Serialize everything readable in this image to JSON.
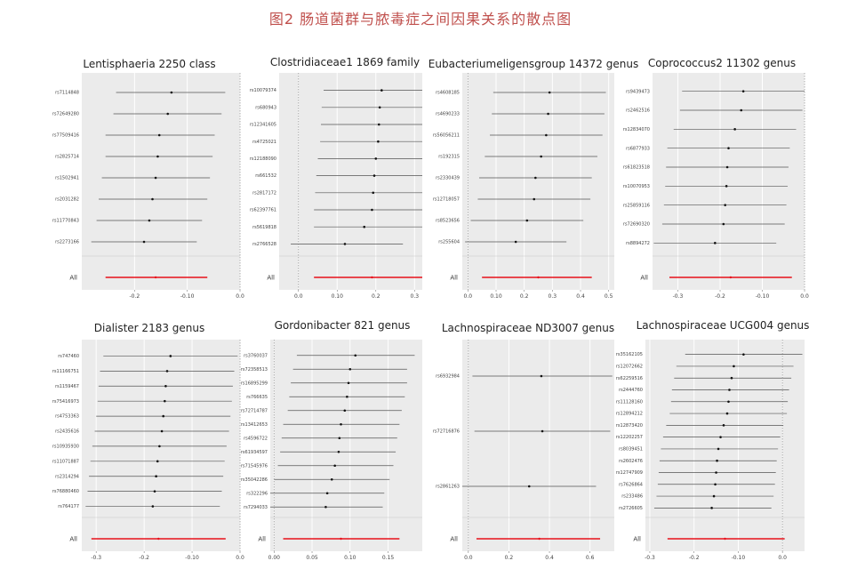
{
  "figure_title": "图2 肠道菌群与脓毒症之间因果关系的散点图",
  "colors": {
    "background": "#ebebeb",
    "segment": "#555555",
    "point": "#111111",
    "overall": "#e8111b",
    "zero_line": "#9a9a9a",
    "grid": "#ffffff"
  },
  "chart_data": [
    {
      "type": "forest",
      "title": "Lentisphaeria 2250 class",
      "xlim": [
        -0.3,
        0.0
      ],
      "xticks": [
        -0.2,
        -0.1,
        0.0
      ],
      "overall_label": "All",
      "overall": {
        "est": -0.16,
        "lo": -0.255,
        "hi": -0.062
      },
      "rows": [
        {
          "snp": "rs7114848",
          "est": -0.13,
          "lo": -0.235,
          "hi": -0.028
        },
        {
          "snp": "rs72649280",
          "est": -0.137,
          "lo": -0.24,
          "hi": -0.035
        },
        {
          "snp": "rs77509416",
          "est": -0.153,
          "lo": -0.255,
          "hi": -0.048
        },
        {
          "snp": "rs2825714",
          "est": -0.156,
          "lo": -0.255,
          "hi": -0.052
        },
        {
          "snp": "rs1502941",
          "est": -0.16,
          "lo": -0.262,
          "hi": -0.057
        },
        {
          "snp": "rs2031282",
          "est": -0.166,
          "lo": -0.268,
          "hi": -0.062
        },
        {
          "snp": "rs11770843",
          "est": -0.172,
          "lo": -0.272,
          "hi": -0.072
        },
        {
          "snp": "rs2273166",
          "est": -0.182,
          "lo": -0.282,
          "hi": -0.082
        }
      ]
    },
    {
      "type": "forest",
      "title": "Clostridiaceae1 1869 family",
      "xlim": [
        -0.05,
        0.32
      ],
      "xticks": [
        0.0,
        0.1,
        0.2,
        0.3
      ],
      "overall_label": "All",
      "overall": {
        "est": 0.19,
        "lo": 0.04,
        "hi": 0.34
      },
      "rows": [
        {
          "snp": "rs10079374",
          "est": 0.215,
          "lo": 0.065,
          "hi": 0.365
        },
        {
          "snp": "rs680943",
          "est": 0.21,
          "lo": 0.06,
          "hi": 0.36
        },
        {
          "snp": "rs12341605",
          "est": 0.208,
          "lo": 0.058,
          "hi": 0.358
        },
        {
          "snp": "rs4725021",
          "est": 0.206,
          "lo": 0.056,
          "hi": 0.356
        },
        {
          "snp": "rs12188090",
          "est": 0.2,
          "lo": 0.05,
          "hi": 0.35
        },
        {
          "snp": "rs661532",
          "est": 0.196,
          "lo": 0.046,
          "hi": 0.346
        },
        {
          "snp": "rs2817172",
          "est": 0.193,
          "lo": 0.043,
          "hi": 0.343
        },
        {
          "snp": "rs62397761",
          "est": 0.19,
          "lo": 0.04,
          "hi": 0.34
        },
        {
          "snp": "rs5619818",
          "est": 0.17,
          "lo": 0.04,
          "hi": 0.32
        },
        {
          "snp": "rs2766528",
          "est": 0.12,
          "lo": -0.02,
          "hi": 0.27
        }
      ]
    },
    {
      "type": "forest",
      "title": "Eubacteriumeligensgroup 14372 genus",
      "xlim": [
        -0.02,
        0.52
      ],
      "xticks": [
        0.0,
        0.1,
        0.2,
        0.3,
        0.4,
        0.5
      ],
      "overall_label": "All",
      "overall": {
        "est": 0.25,
        "lo": 0.05,
        "hi": 0.44
      },
      "rows": [
        {
          "snp": "rs4608185",
          "est": 0.29,
          "lo": 0.09,
          "hi": 0.49
        },
        {
          "snp": "rs4690233",
          "est": 0.285,
          "lo": 0.085,
          "hi": 0.485
        },
        {
          "snp": "rs56056211",
          "est": 0.278,
          "lo": 0.078,
          "hi": 0.478
        },
        {
          "snp": "rs192315",
          "est": 0.26,
          "lo": 0.06,
          "hi": 0.46
        },
        {
          "snp": "rs2330439",
          "est": 0.24,
          "lo": 0.04,
          "hi": 0.44
        },
        {
          "snp": "rs12718057",
          "est": 0.235,
          "lo": 0.035,
          "hi": 0.435
        },
        {
          "snp": "rs8523656",
          "est": 0.21,
          "lo": 0.01,
          "hi": 0.41
        },
        {
          "snp": "rs255604",
          "est": 0.17,
          "lo": -0.01,
          "hi": 0.35
        }
      ]
    },
    {
      "type": "forest",
      "title": "Coprococcus2 11302 genus",
      "xlim": [
        -0.36,
        0.0
      ],
      "xticks": [
        -0.3,
        -0.2,
        -0.1,
        0.0
      ],
      "overall_label": "All",
      "overall": {
        "est": -0.175,
        "lo": -0.32,
        "hi": -0.03
      },
      "rows": [
        {
          "snp": "rs9439473",
          "est": -0.145,
          "lo": -0.29,
          "hi": 0.005
        },
        {
          "snp": "rs2462516",
          "est": -0.15,
          "lo": -0.295,
          "hi": -0.005
        },
        {
          "snp": "rs12834070",
          "est": -0.165,
          "lo": -0.31,
          "hi": -0.02
        },
        {
          "snp": "rs6877933",
          "est": -0.18,
          "lo": -0.325,
          "hi": -0.035
        },
        {
          "snp": "rs61823518",
          "est": -0.183,
          "lo": -0.328,
          "hi": -0.038
        },
        {
          "snp": "rs10070953",
          "est": -0.185,
          "lo": -0.33,
          "hi": -0.04
        },
        {
          "snp": "rs25859116",
          "est": -0.188,
          "lo": -0.333,
          "hi": -0.043
        },
        {
          "snp": "rs72690320",
          "est": -0.192,
          "lo": -0.337,
          "hi": -0.047
        },
        {
          "snp": "rs8894272",
          "est": -0.212,
          "lo": -0.357,
          "hi": -0.067
        }
      ]
    },
    {
      "type": "forest",
      "title": "Dialister 2183 genus",
      "xlim": [
        -0.33,
        0.0
      ],
      "xticks": [
        -0.3,
        -0.2,
        -0.1,
        0.0
      ],
      "overall_label": "All",
      "overall": {
        "est": -0.17,
        "lo": -0.31,
        "hi": -0.03
      },
      "rows": [
        {
          "snp": "rs747460",
          "est": -0.145,
          "lo": -0.285,
          "hi": -0.005
        },
        {
          "snp": "rs11166751",
          "est": -0.152,
          "lo": -0.292,
          "hi": -0.012
        },
        {
          "snp": "rs1159467",
          "est": -0.155,
          "lo": -0.295,
          "hi": -0.015
        },
        {
          "snp": "rs75416973",
          "est": -0.157,
          "lo": -0.297,
          "hi": -0.017
        },
        {
          "snp": "rs4753363",
          "est": -0.16,
          "lo": -0.3,
          "hi": -0.02
        },
        {
          "snp": "rs2435616",
          "est": -0.163,
          "lo": -0.303,
          "hi": -0.023
        },
        {
          "snp": "rs10935930",
          "est": -0.168,
          "lo": -0.308,
          "hi": -0.028
        },
        {
          "snp": "rs11071887",
          "est": -0.172,
          "lo": -0.312,
          "hi": -0.032
        },
        {
          "snp": "rs2314294",
          "est": -0.175,
          "lo": -0.315,
          "hi": -0.035
        },
        {
          "snp": "rs76880460",
          "est": -0.178,
          "lo": -0.318,
          "hi": -0.038
        },
        {
          "snp": "rs764177",
          "est": -0.182,
          "lo": -0.322,
          "hi": -0.042
        }
      ]
    },
    {
      "type": "forest",
      "title": "Gordonibacter 821 genus",
      "xlim": [
        -0.005,
        0.195
      ],
      "xticks": [
        0.0,
        0.05,
        0.1,
        0.15
      ],
      "overall_label": "All",
      "overall": {
        "est": 0.088,
        "lo": 0.012,
        "hi": 0.165
      },
      "rows": [
        {
          "snp": "rs3760037",
          "est": 0.107,
          "lo": 0.03,
          "hi": 0.185
        },
        {
          "snp": "rs72358513",
          "est": 0.1,
          "lo": 0.025,
          "hi": 0.175
        },
        {
          "snp": "rs16895299",
          "est": 0.098,
          "lo": 0.022,
          "hi": 0.175
        },
        {
          "snp": "rs766635",
          "est": 0.096,
          "lo": 0.02,
          "hi": 0.172
        },
        {
          "snp": "rs72714787",
          "est": 0.093,
          "lo": 0.018,
          "hi": 0.168
        },
        {
          "snp": "rs13412653",
          "est": 0.088,
          "lo": 0.012,
          "hi": 0.165
        },
        {
          "snp": "rs4596722",
          "est": 0.086,
          "lo": 0.01,
          "hi": 0.162
        },
        {
          "snp": "rs61934597",
          "est": 0.085,
          "lo": 0.008,
          "hi": 0.16
        },
        {
          "snp": "rs71545976",
          "est": 0.08,
          "lo": 0.005,
          "hi": 0.157
        },
        {
          "snp": "rs35042286",
          "est": 0.076,
          "lo": 0.0,
          "hi": 0.152
        },
        {
          "snp": "rs322296",
          "est": 0.07,
          "lo": -0.005,
          "hi": 0.145
        },
        {
          "snp": "rs7294033",
          "est": 0.068,
          "lo": -0.007,
          "hi": 0.143
        }
      ]
    },
    {
      "type": "forest",
      "title": "Lachnospiraceae ND3007 genus",
      "xlim": [
        -0.03,
        0.72
      ],
      "xticks": [
        0.0,
        0.2,
        0.4,
        0.6
      ],
      "overall_label": "All",
      "overall": {
        "est": 0.35,
        "lo": 0.04,
        "hi": 0.65
      },
      "rows": [
        {
          "snp": "rs6932984",
          "est": 0.36,
          "lo": 0.02,
          "hi": 0.71
        },
        {
          "snp": "rs72716876",
          "est": 0.365,
          "lo": 0.03,
          "hi": 0.7
        },
        {
          "snp": "rs2861263",
          "est": 0.3,
          "lo": -0.03,
          "hi": 0.63
        }
      ]
    },
    {
      "type": "forest",
      "title": "Lachnospiraceae UCG004 genus",
      "xlim": [
        -0.31,
        0.05
      ],
      "xticks": [
        -0.3,
        -0.2,
        -0.1,
        0.0
      ],
      "overall_label": "All",
      "overall": {
        "est": -0.13,
        "lo": -0.26,
        "hi": 0.005
      },
      "rows": [
        {
          "snp": "rs35162105",
          "est": -0.088,
          "lo": -0.22,
          "hi": 0.045
        },
        {
          "snp": "rs12072662",
          "est": -0.11,
          "lo": -0.24,
          "hi": 0.025
        },
        {
          "snp": "rs62259516",
          "est": -0.115,
          "lo": -0.245,
          "hi": 0.02
        },
        {
          "snp": "rs2444760",
          "est": -0.12,
          "lo": -0.25,
          "hi": 0.015
        },
        {
          "snp": "rs11128160",
          "est": -0.122,
          "lo": -0.252,
          "hi": 0.012
        },
        {
          "snp": "rs12894212",
          "est": -0.125,
          "lo": -0.255,
          "hi": 0.01
        },
        {
          "snp": "rs12873420",
          "est": -0.133,
          "lo": -0.263,
          "hi": 0.002
        },
        {
          "snp": "rs12202257",
          "est": -0.14,
          "lo": -0.27,
          "hi": -0.005
        },
        {
          "snp": "rs8039451",
          "est": -0.145,
          "lo": -0.275,
          "hi": -0.01
        },
        {
          "snp": "rs2602476",
          "est": -0.148,
          "lo": -0.278,
          "hi": -0.013
        },
        {
          "snp": "rs12747909",
          "est": -0.15,
          "lo": -0.28,
          "hi": -0.015
        },
        {
          "snp": "rs7626864",
          "est": -0.152,
          "lo": -0.282,
          "hi": -0.017
        },
        {
          "snp": "rs233486",
          "est": -0.155,
          "lo": -0.285,
          "hi": -0.02
        },
        {
          "snp": "rs2726605",
          "est": -0.16,
          "lo": -0.29,
          "hi": -0.025
        }
      ]
    }
  ]
}
